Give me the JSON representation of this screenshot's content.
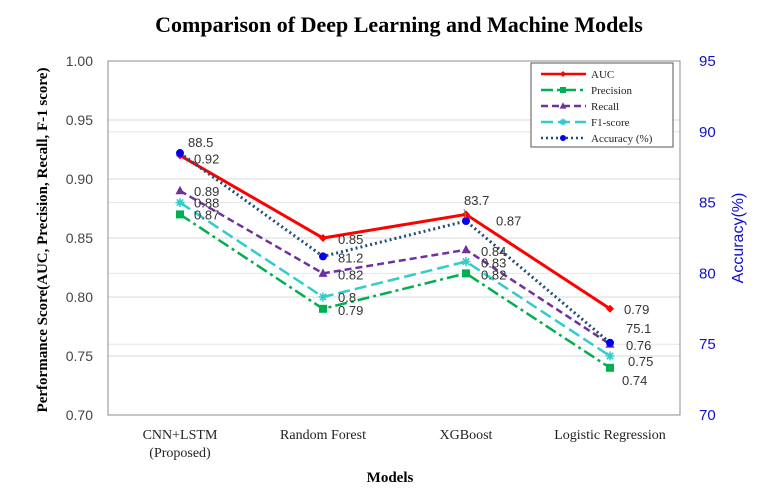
{
  "chart_data": {
    "type": "line",
    "title": "Comparison of Deep Learning and Machine Models",
    "xlabel": "Models",
    "ylabel": "Performance Score(AUC, Precision, Recall, F-1 score)",
    "ylabel_right": "Accuracy(%)",
    "categories": [
      "CNN+LSTM (Proposed)",
      "Random Forest",
      "XGBoost",
      "Logistic Regression"
    ],
    "category_lines": [
      [
        "CNN+LSTM",
        "(Proposed)"
      ],
      [
        "Random Forest"
      ],
      [
        "XGBoost"
      ],
      [
        "Logistic Regression"
      ]
    ],
    "ylim": [
      0.7,
      1.0
    ],
    "ylim_right": [
      70,
      95
    ],
    "yticks": [
      "0.70",
      "0.75",
      "0.80",
      "0.85",
      "0.90",
      "0.95",
      "1.00"
    ],
    "yticks_right": [
      "70",
      "75",
      "80",
      "85",
      "90",
      "95"
    ],
    "legend_position": "top-right",
    "grid": true,
    "series": [
      {
        "name": "AUC",
        "axis": "left",
        "values": [
          0.92,
          0.85,
          0.87,
          0.79
        ],
        "labels": [
          "0.92",
          "0.85",
          "0.87",
          "0.79"
        ],
        "color": "#ff0000",
        "dash": "",
        "marker": "diamond",
        "width": 3
      },
      {
        "name": "Precision",
        "axis": "left",
        "values": [
          0.87,
          0.79,
          0.82,
          0.74
        ],
        "labels": [
          "0.87",
          "0.79",
          "0.82",
          "0.74"
        ],
        "color": "#00b050",
        "dash": "12 4 3 4",
        "marker": "square",
        "width": 2.5
      },
      {
        "name": "Recall",
        "axis": "left",
        "values": [
          0.89,
          0.82,
          0.84,
          0.76
        ],
        "labels": [
          "0.89",
          "0.82",
          "0.84",
          ""
        ],
        "color": "#7030a0",
        "dash": "7 4",
        "marker": "triangle",
        "width": 2.5
      },
      {
        "name": "F1-score",
        "axis": "left",
        "values": [
          0.88,
          0.8,
          0.83,
          0.75
        ],
        "labels": [
          "0.88",
          "0.8",
          "0.83",
          "0.75"
        ],
        "color": "#33cccc",
        "dash": "12 5",
        "marker": "star",
        "width": 2.5
      },
      {
        "name": "Accuracy (%)",
        "axis": "right",
        "values": [
          88.5,
          81.2,
          83.7,
          75.1
        ],
        "labels": [
          "88.5",
          "81.2",
          "83.7",
          "75.1"
        ],
        "color": "#1f4e79",
        "dash": "2 3",
        "marker": "circle",
        "width": 3
      }
    ]
  }
}
